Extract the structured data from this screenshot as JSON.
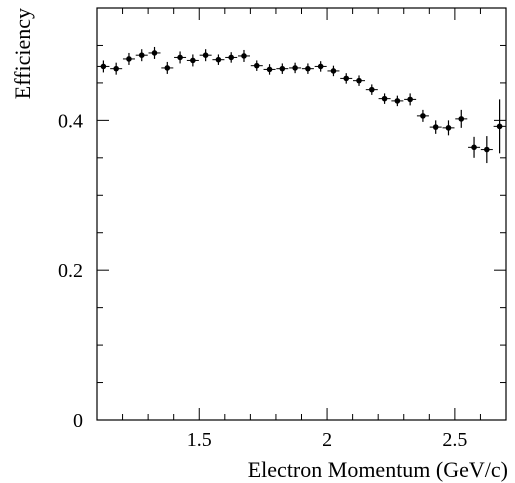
{
  "chart_data": {
    "type": "scatter",
    "title": "",
    "xlabel": "Electron Momentum (GeV/c)",
    "ylabel": "Efficiency",
    "xlim": [
      1.1,
      2.7
    ],
    "ylim": [
      0,
      0.55
    ],
    "x_ticks": [
      1.5,
      2,
      2.5
    ],
    "x_tick_labels": [
      "1.5",
      "2",
      "2.5"
    ],
    "y_ticks": [
      0,
      0.2,
      0.4
    ],
    "y_tick_labels": [
      "0",
      "0.2",
      "0.4"
    ],
    "grid": false,
    "legend": "none",
    "marker": "filled-circle-with-error-bars",
    "color": "#000000",
    "series": [
      {
        "x": [
          1.125,
          1.175,
          1.225,
          1.275,
          1.325,
          1.375,
          1.425,
          1.475,
          1.525,
          1.575,
          1.625,
          1.675,
          1.725,
          1.775,
          1.825,
          1.875,
          1.925,
          1.975,
          2.025,
          2.075,
          2.125,
          2.175,
          2.225,
          2.275,
          2.325,
          2.375,
          2.425,
          2.475,
          2.525,
          2.575,
          2.625,
          2.675
        ],
        "y": [
          0.472,
          0.469,
          0.482,
          0.487,
          0.49,
          0.47,
          0.484,
          0.48,
          0.487,
          0.481,
          0.484,
          0.486,
          0.473,
          0.468,
          0.469,
          0.47,
          0.469,
          0.472,
          0.466,
          0.456,
          0.453,
          0.441,
          0.429,
          0.426,
          0.428,
          0.406,
          0.391,
          0.39,
          0.402,
          0.364,
          0.361,
          0.392
        ],
        "err": [
          0.008,
          0.008,
          0.008,
          0.008,
          0.008,
          0.008,
          0.008,
          0.008,
          0.008,
          0.007,
          0.007,
          0.008,
          0.007,
          0.007,
          0.007,
          0.007,
          0.007,
          0.007,
          0.007,
          0.007,
          0.007,
          0.007,
          0.007,
          0.007,
          0.008,
          0.008,
          0.009,
          0.01,
          0.012,
          0.014,
          0.018,
          0.036
        ]
      }
    ]
  }
}
